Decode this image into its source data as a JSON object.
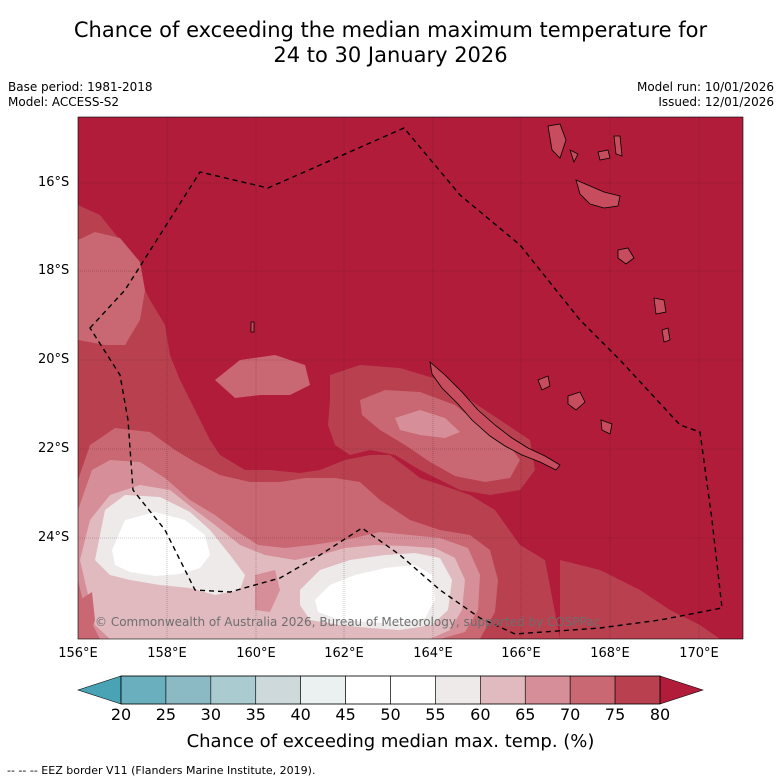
{
  "title": {
    "line1": "Chance of exceeding the median maximum temperature for",
    "line2": "24 to 30 January 2026"
  },
  "meta": {
    "base_period": "Base period: 1981-2018",
    "model": "Model: ACCESS-S2",
    "model_run": "Model run: 10/01/2026",
    "issued": "Issued: 12/01/2026"
  },
  "axes": {
    "lat_labels": [
      "16°S",
      "18°S",
      "20°S",
      "22°S",
      "24°S"
    ],
    "lon_labels": [
      "156°E",
      "158°E",
      "160°E",
      "162°E",
      "164°E",
      "166°E",
      "168°E",
      "170°E"
    ]
  },
  "copyright": "© Commonwealth of Australia 2026, Bureau of Meteorology, supported by COSPPac",
  "colorbar": {
    "ticks": [
      "20",
      "25",
      "30",
      "35",
      "40",
      "45",
      "50",
      "55",
      "60",
      "65",
      "70",
      "75",
      "80"
    ],
    "colors": [
      "#4aa3b5",
      "#6aafbd",
      "#8bbac4",
      "#aacbcf",
      "#cdd9db",
      "#ebf0f1",
      "#ffffff",
      "#ffffff",
      "#eeeaea",
      "#e0babf",
      "#d68f98",
      "#c96772",
      "#b8404f",
      "#b01c3a"
    ],
    "title": "Chance of exceeding median max. temp. (%)"
  },
  "footnote": "-- -- -- EEZ border V11 (Flanders Marine Institute, 2019)."
}
